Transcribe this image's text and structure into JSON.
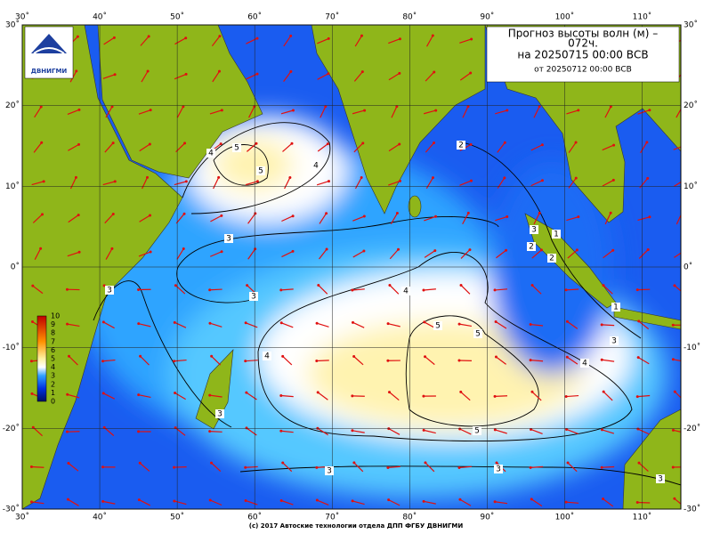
{
  "header": {
    "title_line1": "Прогноз высоты волн (м) –",
    "title_line2": "072ч.",
    "valid": "на 20250715 00:00 ВСВ",
    "issued": "от 20250712 00:00 ВСВ"
  },
  "logo": {
    "text": "ДВНИГМИ"
  },
  "map": {
    "lon_ticks": [
      {
        "value": 30,
        "label": "30˚"
      },
      {
        "value": 40,
        "label": "40˚"
      },
      {
        "value": 50,
        "label": "50˚"
      },
      {
        "value": 60,
        "label": "60˚"
      },
      {
        "value": 70,
        "label": "70˚"
      },
      {
        "value": 80,
        "label": "80˚"
      },
      {
        "value": 90,
        "label": "90˚"
      },
      {
        "value": 100,
        "label": "100˚"
      },
      {
        "value": 110,
        "label": "110˚"
      }
    ],
    "lat_ticks": [
      {
        "value": 30,
        "label": "30˚"
      },
      {
        "value": 20,
        "label": "20˚"
      },
      {
        "value": 10,
        "label": "10˚"
      },
      {
        "value": 0,
        "label": "0˚"
      },
      {
        "value": -10,
        "label": "-10˚"
      },
      {
        "value": -20,
        "label": "-20˚"
      },
      {
        "value": -30,
        "label": "-30˚"
      }
    ],
    "contour_labels": [
      4,
      5,
      5,
      4,
      3,
      3,
      2,
      4,
      4,
      5,
      5,
      4,
      3,
      3,
      3,
      3,
      3,
      3,
      1,
      1,
      2,
      2,
      3,
      5
    ]
  },
  "colorbar": {
    "ticks": [
      10,
      9,
      8,
      7,
      6,
      5,
      4,
      3,
      2,
      1,
      0
    ]
  },
  "footer": {
    "copyright": "(c) 2017 Автоские технологии отдела ДПП ФГБУ ДВНИГМИ"
  }
}
